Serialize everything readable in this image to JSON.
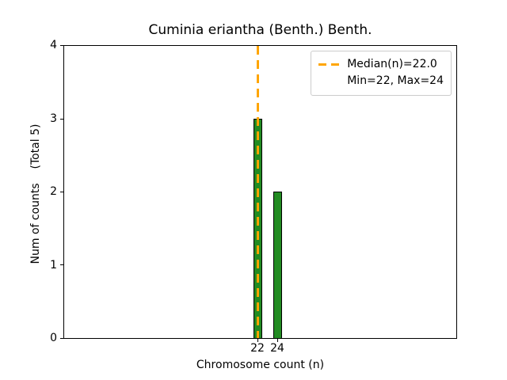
{
  "chart_data": {
    "type": "bar",
    "title": "Cuminia eriantha (Benth.) Benth.",
    "xlabel": "Chromosome count (n)",
    "ylabel": "Num of counts    (Total 5)",
    "categories": [
      "22",
      "24"
    ],
    "values": [
      3,
      2
    ],
    "ylim": [
      0,
      4
    ],
    "yticks": [
      "0",
      "1",
      "2",
      "3",
      "4"
    ],
    "bar_color": "#228B22",
    "bar_edge_color": "#000000",
    "median_line": {
      "value": 22.0,
      "color": "#FFA500",
      "style": "dashed"
    },
    "legend": {
      "position": "upper-right",
      "entries": [
        {
          "marker": "orange-dashed-line",
          "label": "Median(n)=22.0"
        },
        {
          "marker": "none",
          "label": "Min=22, Max=24"
        }
      ]
    },
    "stats": {
      "median": 22.0,
      "min": 22,
      "max": 24,
      "total": 5
    }
  }
}
